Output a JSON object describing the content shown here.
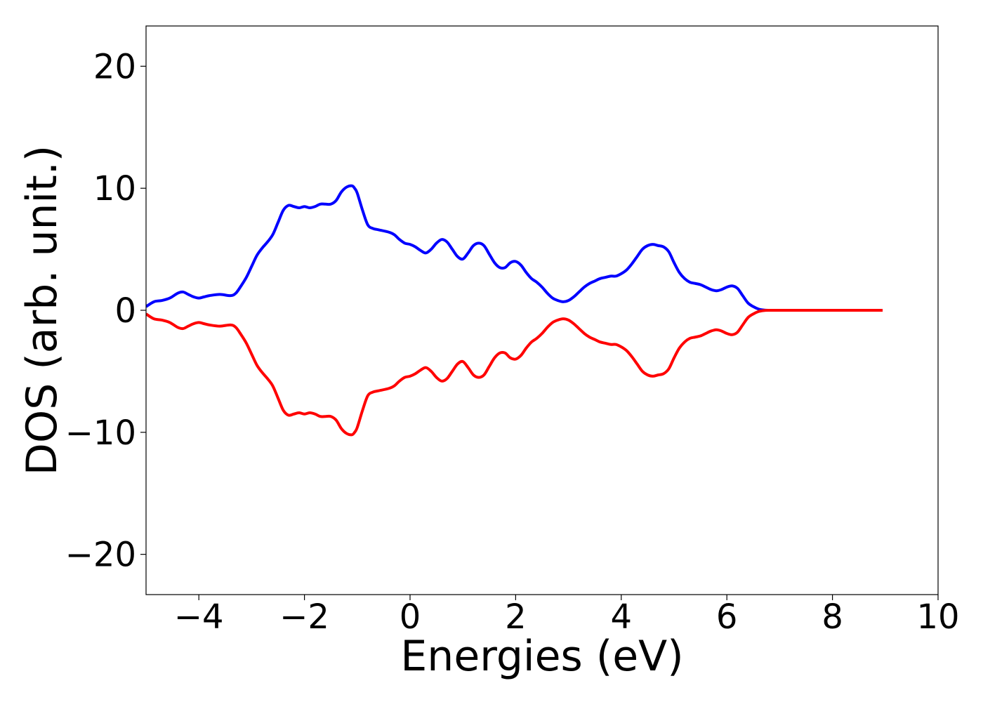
{
  "chart_data": {
    "type": "line",
    "title": "",
    "xlabel": "Energies (eV)",
    "ylabel": "DOS (arb. unit.)",
    "xlim": [
      -5,
      10
    ],
    "ylim": [
      -23.3,
      23.3
    ],
    "xticks": [
      -4,
      -2,
      0,
      2,
      4,
      6,
      8,
      10
    ],
    "xtick_labels": [
      "−4",
      "−2",
      "0",
      "2",
      "4",
      "6",
      "8",
      "10"
    ],
    "yticks": [
      -20,
      -10,
      0,
      10,
      20
    ],
    "ytick_labels": [
      "−20",
      "−10",
      "0",
      "10",
      "20"
    ],
    "grid": false,
    "legend": "none",
    "series": [
      {
        "color": "#0000ff",
        "x": [
          -5.0,
          -4.85,
          -4.7,
          -4.55,
          -4.4,
          -4.3,
          -4.2,
          -4.1,
          -4.0,
          -3.9,
          -3.8,
          -3.6,
          -3.4,
          -3.3,
          -3.2,
          -3.1,
          -3.0,
          -2.9,
          -2.8,
          -2.7,
          -2.6,
          -2.5,
          -2.4,
          -2.3,
          -2.2,
          -2.1,
          -2.0,
          -1.9,
          -1.8,
          -1.7,
          -1.6,
          -1.5,
          -1.4,
          -1.3,
          -1.2,
          -1.1,
          -1.05,
          -1.0,
          -0.9,
          -0.8,
          -0.7,
          -0.6,
          -0.4,
          -0.3,
          -0.2,
          -0.1,
          0.0,
          0.1,
          0.2,
          0.3,
          0.4,
          0.5,
          0.6,
          0.7,
          0.8,
          0.9,
          1.0,
          1.1,
          1.2,
          1.3,
          1.4,
          1.5,
          1.6,
          1.7,
          1.8,
          1.9,
          2.0,
          2.1,
          2.2,
          2.3,
          2.4,
          2.5,
          2.6,
          2.7,
          2.8,
          2.9,
          3.0,
          3.1,
          3.2,
          3.3,
          3.4,
          3.5,
          3.6,
          3.7,
          3.8,
          3.9,
          4.0,
          4.1,
          4.2,
          4.3,
          4.4,
          4.5,
          4.6,
          4.7,
          4.8,
          4.9,
          5.0,
          5.1,
          5.2,
          5.3,
          5.4,
          5.5,
          5.6,
          5.7,
          5.8,
          5.9,
          6.0,
          6.1,
          6.2,
          6.3,
          6.4,
          6.5,
          6.6,
          6.7,
          6.8,
          6.9,
          7.0,
          7.5,
          8.0,
          8.5,
          8.95
        ],
        "y": [
          0.3,
          0.7,
          0.8,
          1.0,
          1.4,
          1.5,
          1.3,
          1.1,
          1.0,
          1.1,
          1.2,
          1.3,
          1.2,
          1.4,
          2.0,
          2.7,
          3.6,
          4.5,
          5.1,
          5.6,
          6.2,
          7.2,
          8.2,
          8.6,
          8.5,
          8.4,
          8.5,
          8.4,
          8.5,
          8.7,
          8.7,
          8.7,
          9.0,
          9.7,
          10.1,
          10.2,
          10.0,
          9.6,
          8.2,
          7.0,
          6.7,
          6.6,
          6.4,
          6.2,
          5.8,
          5.5,
          5.4,
          5.2,
          4.9,
          4.7,
          5.0,
          5.5,
          5.8,
          5.6,
          5.0,
          4.4,
          4.2,
          4.7,
          5.3,
          5.5,
          5.3,
          4.6,
          3.9,
          3.5,
          3.5,
          3.9,
          4.0,
          3.7,
          3.1,
          2.6,
          2.3,
          1.9,
          1.4,
          1.0,
          0.8,
          0.7,
          0.8,
          1.1,
          1.5,
          1.9,
          2.2,
          2.4,
          2.6,
          2.7,
          2.8,
          2.8,
          3.0,
          3.3,
          3.8,
          4.4,
          5.0,
          5.3,
          5.4,
          5.3,
          5.2,
          4.8,
          3.9,
          3.1,
          2.6,
          2.3,
          2.2,
          2.1,
          1.9,
          1.7,
          1.6,
          1.7,
          1.9,
          2.0,
          1.8,
          1.2,
          0.6,
          0.3,
          0.1,
          0.02,
          0.0,
          0.0,
          0.0,
          0.0,
          0.0,
          0.0,
          0.0
        ]
      },
      {
        "color": "#ff0000",
        "x": [
          -5.0,
          -4.85,
          -4.7,
          -4.55,
          -4.4,
          -4.3,
          -4.2,
          -4.1,
          -4.0,
          -3.9,
          -3.8,
          -3.6,
          -3.4,
          -3.3,
          -3.2,
          -3.1,
          -3.0,
          -2.9,
          -2.8,
          -2.7,
          -2.6,
          -2.5,
          -2.4,
          -2.3,
          -2.2,
          -2.1,
          -2.0,
          -1.9,
          -1.8,
          -1.7,
          -1.6,
          -1.5,
          -1.4,
          -1.3,
          -1.2,
          -1.1,
          -1.05,
          -1.0,
          -0.9,
          -0.8,
          -0.7,
          -0.6,
          -0.4,
          -0.3,
          -0.2,
          -0.1,
          0.0,
          0.1,
          0.2,
          0.3,
          0.4,
          0.5,
          0.6,
          0.7,
          0.8,
          0.9,
          1.0,
          1.1,
          1.2,
          1.3,
          1.4,
          1.5,
          1.6,
          1.7,
          1.8,
          1.9,
          2.0,
          2.1,
          2.2,
          2.3,
          2.4,
          2.5,
          2.6,
          2.7,
          2.8,
          2.9,
          3.0,
          3.1,
          3.2,
          3.3,
          3.4,
          3.5,
          3.6,
          3.7,
          3.8,
          3.9,
          4.0,
          4.1,
          4.2,
          4.3,
          4.4,
          4.5,
          4.6,
          4.7,
          4.8,
          4.9,
          5.0,
          5.1,
          5.2,
          5.3,
          5.4,
          5.5,
          5.6,
          5.7,
          5.8,
          5.9,
          6.0,
          6.1,
          6.2,
          6.3,
          6.4,
          6.5,
          6.6,
          6.7,
          6.8,
          6.9,
          7.0,
          7.5,
          8.0,
          8.5,
          8.95
        ],
        "y": [
          -0.3,
          -0.7,
          -0.8,
          -1.0,
          -1.4,
          -1.5,
          -1.3,
          -1.1,
          -1.0,
          -1.1,
          -1.2,
          -1.3,
          -1.2,
          -1.4,
          -2.0,
          -2.7,
          -3.6,
          -4.5,
          -5.1,
          -5.6,
          -6.2,
          -7.2,
          -8.2,
          -8.6,
          -8.5,
          -8.4,
          -8.5,
          -8.4,
          -8.5,
          -8.7,
          -8.7,
          -8.7,
          -9.0,
          -9.7,
          -10.1,
          -10.2,
          -10.0,
          -9.6,
          -8.2,
          -7.0,
          -6.7,
          -6.6,
          -6.4,
          -6.2,
          -5.8,
          -5.5,
          -5.4,
          -5.2,
          -4.9,
          -4.7,
          -5.0,
          -5.5,
          -5.8,
          -5.6,
          -5.0,
          -4.4,
          -4.2,
          -4.7,
          -5.3,
          -5.5,
          -5.3,
          -4.6,
          -3.9,
          -3.5,
          -3.5,
          -3.9,
          -4.0,
          -3.7,
          -3.1,
          -2.6,
          -2.3,
          -1.9,
          -1.4,
          -1.0,
          -0.8,
          -0.7,
          -0.8,
          -1.1,
          -1.5,
          -1.9,
          -2.2,
          -2.4,
          -2.6,
          -2.7,
          -2.8,
          -2.8,
          -3.0,
          -3.3,
          -3.8,
          -4.4,
          -5.0,
          -5.3,
          -5.4,
          -5.3,
          -5.2,
          -4.8,
          -3.9,
          -3.1,
          -2.6,
          -2.3,
          -2.2,
          -2.1,
          -1.9,
          -1.7,
          -1.6,
          -1.7,
          -1.9,
          -2.0,
          -1.8,
          -1.2,
          -0.6,
          -0.3,
          -0.1,
          -0.02,
          0.0,
          0.0,
          0.0,
          0.0,
          0.0,
          0.0,
          0.0
        ]
      }
    ]
  }
}
